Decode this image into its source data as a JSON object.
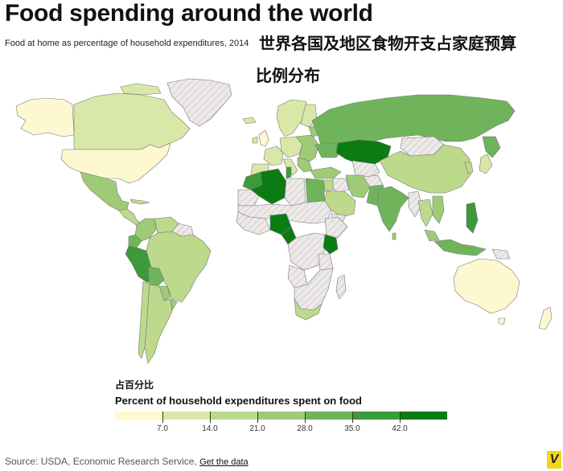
{
  "header": {
    "title": "Food spending around the world",
    "subtitle": "Food at home as percentage of household expenditures, 2014",
    "cn_title_line1": "世界各国及地区食物开支占家庭预算",
    "cn_title_line2": "比例分布"
  },
  "legend": {
    "cn_label": "占百分比",
    "title": "Percent of household expenditures spent on food",
    "colors": [
      "#fdf8cf",
      "#d9e8a8",
      "#bdd98c",
      "#9fcb76",
      "#6fb45a",
      "#3d9a3a",
      "#0a7c12"
    ],
    "ticks": [
      "7.0",
      "14.0",
      "21.0",
      "28.0",
      "35.0",
      "42.0"
    ],
    "no_data_color": "#e8e4e4"
  },
  "footer": {
    "source": "Source: USDA, Economic Research Service,",
    "link": "Get the data",
    "badge": "V"
  }
}
